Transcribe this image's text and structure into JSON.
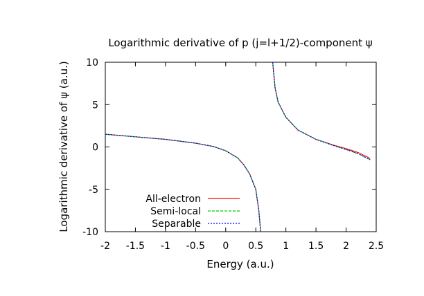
{
  "chart_data": {
    "type": "line",
    "title": "Logarithmic derivative of p (j=l+1/2)-component ψ",
    "xlabel": "Energy (a.u.)",
    "ylabel": "Logarithmic derivative of ψ (a.u.)",
    "xlim": [
      -2,
      2.5
    ],
    "ylim": [
      -10,
      10
    ],
    "xticks": [
      {
        "value": -2,
        "label": "-2"
      },
      {
        "value": -1.5,
        "label": "-1.5"
      },
      {
        "value": -1,
        "label": "-1"
      },
      {
        "value": -0.5,
        "label": "-0.5"
      },
      {
        "value": 0,
        "label": "0"
      },
      {
        "value": 0.5,
        "label": "0.5"
      },
      {
        "value": 1,
        "label": "1"
      },
      {
        "value": 1.5,
        "label": "1.5"
      },
      {
        "value": 2,
        "label": "2"
      },
      {
        "value": 2.5,
        "label": "2.5"
      }
    ],
    "yticks": [
      {
        "value": 10,
        "label": "10"
      },
      {
        "value": 5,
        "label": "5"
      },
      {
        "value": 0,
        "label": "0"
      },
      {
        "value": -5,
        "label": "-5"
      },
      {
        "value": -10,
        "label": "-10"
      }
    ],
    "grid": false,
    "legend_position": "bottom-left",
    "series": [
      {
        "name": "All-electron",
        "color": "#ff0000",
        "dash": "solid",
        "segments": [
          [
            [
              -2,
              1.5
            ],
            [
              -1.5,
              1.2
            ],
            [
              -1,
              0.9
            ],
            [
              -0.5,
              0.45
            ],
            [
              -0.2,
              0.05
            ],
            [
              0,
              -0.45
            ],
            [
              0.2,
              -1.3
            ],
            [
              0.3,
              -2.1
            ],
            [
              0.4,
              -3.2
            ],
            [
              0.5,
              -5.0
            ],
            [
              0.55,
              -7.5
            ],
            [
              0.58,
              -10
            ]
          ],
          [
            [
              0.78,
              10
            ],
            [
              0.82,
              7.0
            ],
            [
              0.87,
              5.3
            ],
            [
              0.95,
              4.2
            ],
            [
              1,
              3.5
            ],
            [
              1.2,
              2.0
            ],
            [
              1.5,
              0.9
            ],
            [
              1.8,
              0.2
            ],
            [
              2,
              -0.2
            ],
            [
              2.2,
              -0.65
            ],
            [
              2.4,
              -1.35
            ]
          ]
        ]
      },
      {
        "name": "Semi-local",
        "color": "#00cc00",
        "dash": "dashed",
        "segments": [
          [
            [
              -2,
              1.5
            ],
            [
              -1.5,
              1.2
            ],
            [
              -1,
              0.9
            ],
            [
              -0.5,
              0.45
            ],
            [
              -0.2,
              0.05
            ],
            [
              0,
              -0.45
            ],
            [
              0.2,
              -1.3
            ],
            [
              0.3,
              -2.1
            ],
            [
              0.4,
              -3.2
            ],
            [
              0.5,
              -5.0
            ],
            [
              0.55,
              -7.5
            ],
            [
              0.58,
              -10
            ]
          ],
          [
            [
              0.78,
              10
            ],
            [
              0.82,
              7.0
            ],
            [
              0.87,
              5.3
            ],
            [
              0.95,
              4.2
            ],
            [
              1,
              3.5
            ],
            [
              1.2,
              2.0
            ],
            [
              1.5,
              0.9
            ],
            [
              1.8,
              0.15
            ],
            [
              2,
              -0.3
            ],
            [
              2.2,
              -0.8
            ],
            [
              2.4,
              -1.5
            ]
          ]
        ]
      },
      {
        "name": "Separable",
        "color": "#0000ff",
        "dash": "dotted",
        "segments": [
          [
            [
              -2,
              1.5
            ],
            [
              -1.5,
              1.2
            ],
            [
              -1,
              0.9
            ],
            [
              -0.5,
              0.45
            ],
            [
              -0.2,
              0.05
            ],
            [
              0,
              -0.45
            ],
            [
              0.2,
              -1.3
            ],
            [
              0.3,
              -2.1
            ],
            [
              0.4,
              -3.2
            ],
            [
              0.5,
              -5.0
            ],
            [
              0.55,
              -7.5
            ],
            [
              0.58,
              -10
            ]
          ],
          [
            [
              0.78,
              10
            ],
            [
              0.82,
              7.0
            ],
            [
              0.87,
              5.3
            ],
            [
              0.95,
              4.2
            ],
            [
              1,
              3.5
            ],
            [
              1.2,
              2.0
            ],
            [
              1.5,
              0.9
            ],
            [
              1.8,
              0.15
            ],
            [
              2,
              -0.3
            ],
            [
              2.2,
              -0.8
            ],
            [
              2.4,
              -1.5
            ]
          ]
        ]
      }
    ]
  }
}
